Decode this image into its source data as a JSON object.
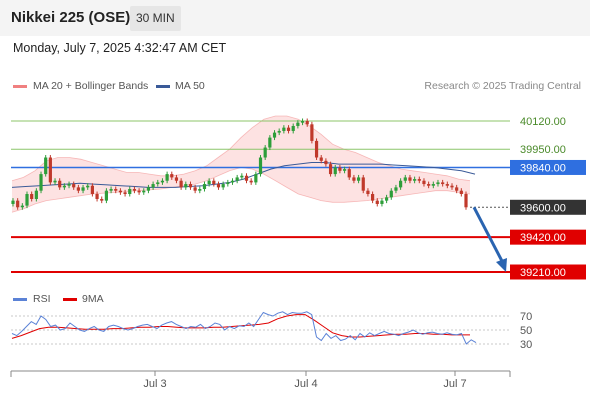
{
  "header": {
    "title": "Nikkei 225 (OSE)",
    "timeframe": "30 MIN"
  },
  "timestamp": "Monday, July 7, 2025 4:32:47 AM CET",
  "legend": {
    "bb_label": "MA 20 + Bollinger Bands",
    "ma50_label": "MA 50",
    "credit": "Research © 2025 Trading Central",
    "rsi_label": "RSI",
    "ma9_label": "9MA"
  },
  "colors": {
    "up_candle": "#2e9e3a",
    "down_candle": "#c0392b",
    "bollinger": "#f08080",
    "ma50": "#3a5a98",
    "resistance": "#8cc56a",
    "pivot": "#2f6fe0",
    "support": "#e00000",
    "projection": "#2a64b0",
    "rsi": "#5b82d6",
    "rsi_ma": "#e00000"
  },
  "chart_data": {
    "type": "candlestick",
    "x_labels": [
      "Jul 3",
      "Jul 4",
      "Jul 7"
    ],
    "price_levels": [
      {
        "value": 40120,
        "label": "40120.00",
        "kind": "resistance"
      },
      {
        "value": 39950,
        "label": "39950.00",
        "kind": "resistance"
      },
      {
        "value": 39840,
        "label": "39840.00",
        "kind": "pivot"
      },
      {
        "value": 39600,
        "label": "39600.00",
        "kind": "last"
      },
      {
        "value": 39420,
        "label": "39420.00",
        "kind": "support"
      },
      {
        "value": 39210,
        "label": "39210.00",
        "kind": "support"
      }
    ],
    "price_range": [
      39210,
      40120
    ],
    "close": [
      39640,
      39600,
      39610,
      39680,
      39650,
      39700,
      39800,
      39900,
      39750,
      39760,
      39720,
      39730,
      39740,
      39720,
      39700,
      39720,
      39730,
      39680,
      39650,
      39640,
      39700,
      39710,
      39700,
      39690,
      39680,
      39710,
      39700,
      39690,
      39700,
      39720,
      39740,
      39750,
      39760,
      39800,
      39780,
      39760,
      39720,
      39740,
      39720,
      39700,
      39710,
      39740,
      39760,
      39740,
      39720,
      39740,
      39750,
      39760,
      39780,
      39790,
      39760,
      39750,
      39800,
      39900,
      39960,
      40020,
      40050,
      40060,
      40080,
      40060,
      40090,
      40110,
      40120,
      40100,
      40000,
      39900,
      39880,
      39860,
      39800,
      39840,
      39820,
      39830,
      39780,
      39760,
      39780,
      39700,
      39680,
      39640,
      39620,
      39640,
      39660,
      39700,
      39720,
      39760,
      39780,
      39760,
      39770,
      39760,
      39740,
      39730,
      39740,
      39750,
      39740,
      39730,
      39720,
      39700,
      39680,
      39600
    ],
    "ma20_band": {
      "upper": [
        39760,
        39780,
        39820,
        39880,
        39900,
        39900,
        39890,
        39870,
        39850,
        39830,
        39810,
        39810,
        39800,
        39790,
        39790,
        39800,
        39820,
        39850,
        39900,
        39950,
        40020,
        40080,
        40130,
        40150,
        40150,
        40130,
        40090,
        40040,
        39980,
        39950,
        39930,
        39900,
        39870,
        39850,
        39830,
        39820,
        39810,
        39800,
        39790,
        39770,
        39760
      ],
      "lower": [
        39570,
        39590,
        39620,
        39640,
        39650,
        39660,
        39670,
        39680,
        39685,
        39690,
        39695,
        39700,
        39705,
        39710,
        39720,
        39730,
        39740,
        39760,
        39790,
        39820,
        39840,
        39830,
        39800,
        39760,
        39720,
        39680,
        39660,
        39640,
        39630,
        39630,
        39635,
        39640,
        39650,
        39660,
        39670,
        39680,
        39690,
        39700,
        39700,
        39690,
        39680
      ]
    },
    "ma50": [
      39720,
      39725,
      39730,
      39735,
      39740,
      39745,
      39740,
      39735,
      39730,
      39725,
      39720,
      39720,
      39720,
      39725,
      39730,
      39740,
      39750,
      39770,
      39800,
      39830,
      39850,
      39860,
      39870,
      39870,
      39860,
      39860,
      39860,
      39860,
      39855,
      39850,
      39845,
      39840,
      39830,
      39820,
      39800
    ],
    "rsi": {
      "levels": [
        70,
        50,
        30
      ],
      "range": [
        20,
        80
      ],
      "series": [
        45,
        42,
        48,
        55,
        62,
        58,
        70,
        65,
        55,
        57,
        50,
        52,
        60,
        55,
        50,
        48,
        52,
        55,
        50,
        48,
        55,
        57,
        55,
        52,
        50,
        52,
        55,
        57,
        58,
        55,
        52,
        57,
        60,
        62,
        58,
        55,
        52,
        55,
        54,
        58,
        52,
        55,
        60,
        58,
        50,
        55,
        52,
        56,
        55,
        60,
        55,
        65,
        75,
        72,
        70,
        74,
        76,
        72,
        75,
        74,
        74,
        76,
        72,
        40,
        35,
        45,
        38,
        42,
        35,
        37,
        42,
        36,
        45,
        40,
        46,
        42,
        45,
        48,
        45,
        44,
        42,
        45,
        47,
        50,
        46,
        44,
        46,
        47,
        45,
        44,
        46,
        44,
        43,
        45,
        30,
        36,
        32
      ],
      "ma9": [
        38,
        42,
        47,
        52,
        54,
        54,
        53,
        52,
        51,
        51,
        51,
        52,
        52,
        53,
        54,
        54,
        55,
        55,
        54,
        53,
        53,
        53,
        54,
        54,
        55,
        56,
        57,
        58,
        60,
        66,
        70,
        72,
        72,
        64,
        55,
        46,
        42,
        40,
        40,
        41,
        42,
        43,
        44,
        44,
        45,
        45,
        44,
        44,
        43,
        43,
        43
      ]
    }
  }
}
